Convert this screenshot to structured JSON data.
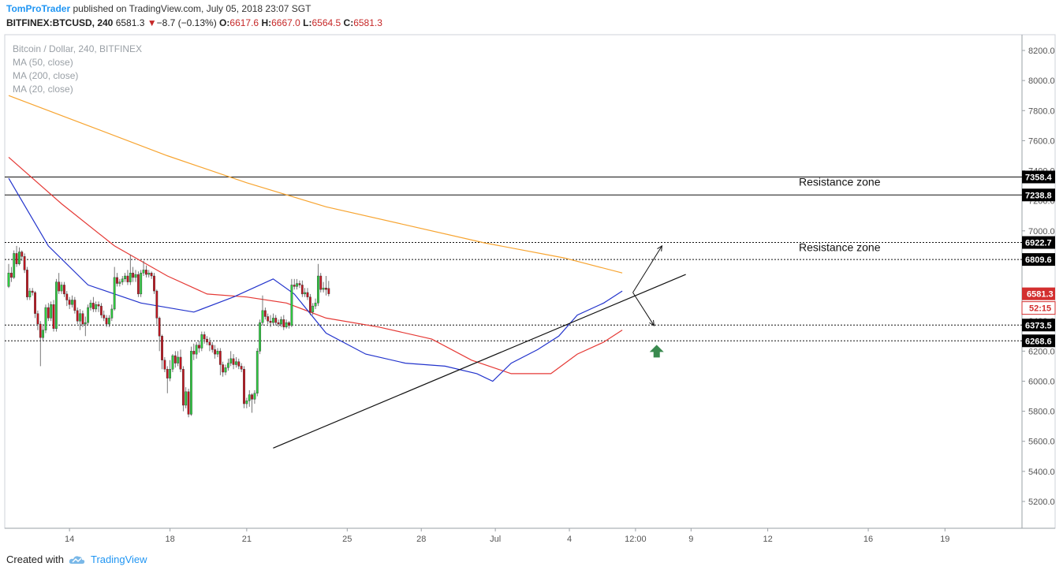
{
  "header": {
    "author": "TomProTrader",
    "published": "published on TradingView.com, July 05, 2018 23:07 SGT",
    "symbol": "BITFINEX:BTCUSD, 240",
    "last": "6581.3",
    "change_arrow": "▼",
    "change": "−8.7 (−0.13%)",
    "o_label": "O:",
    "o": "6617.6",
    "h_label": "H:",
    "h": "6667.0",
    "l_label": "L:",
    "l": "6564.5",
    "c_label": "C:",
    "c": "6581.3"
  },
  "legend": {
    "title": "Bitcoin / Dollar, 240, BITFINEX",
    "ma50": "MA (50, close)",
    "ma200": "MA (200, close)",
    "ma20": "MA (20, close)"
  },
  "footer": {
    "created_with": "Created with",
    "brand": "TradingView"
  },
  "colors": {
    "up": "#2ecc40",
    "down": "#c0151f",
    "ma20": "#2233cc",
    "ma50": "#e53935",
    "ma200": "#f7a430",
    "arrow_up_marker": "#3a8a4f",
    "price_tag": "#d32f2f",
    "level_tag": "#000000"
  },
  "chart_data": {
    "type": "candlestick",
    "title": "Bitcoin / Dollar, 240, BITFINEX",
    "ylim": [
      5000,
      8300
    ],
    "y_ticks": [
      "8200.0",
      "8000.0",
      "7800.0",
      "7600.0",
      "7400.0",
      "7200.0",
      "7000.0",
      "6800.0",
      "6600.0",
      "6400.0",
      "6200.0",
      "6000.0",
      "5800.0",
      "5600.0",
      "5400.0",
      "5200.0"
    ],
    "x_ticks": [
      "14",
      "18",
      "21",
      "25",
      "28",
      "Jul",
      "4",
      "12:00",
      "9",
      "12",
      "16",
      "19"
    ],
    "x_tick_index": [
      23,
      61,
      90,
      128,
      156,
      184,
      212,
      237,
      258,
      287,
      325,
      354
    ],
    "levels": [
      {
        "label": "7358.4",
        "value": 7358.4,
        "style": "solid",
        "note": "Resistance zone"
      },
      {
        "label": "7238.8",
        "value": 7238.8,
        "style": "solid",
        "note": ""
      },
      {
        "label": "6922.7",
        "value": 6922.7,
        "style": "dotted",
        "note": "Resistance zone"
      },
      {
        "label": "6809.6",
        "value": 6809.6,
        "style": "dotted",
        "note": ""
      },
      {
        "label": "6373.5",
        "value": 6373.5,
        "style": "dotted",
        "note": ""
      },
      {
        "label": "6268.6",
        "value": 6268.6,
        "style": "dotted",
        "note": ""
      }
    ],
    "last_price": {
      "label": "6581.3",
      "value": 6581.3,
      "countdown": "52:15"
    },
    "trendline": {
      "from": {
        "i": 100,
        "y": 5555
      },
      "to": {
        "i": 256,
        "y": 6710
      }
    },
    "arrows": [
      {
        "from": {
          "i": 236,
          "y": 6590
        },
        "to": {
          "i": 247,
          "y": 6900
        }
      },
      {
        "from": {
          "i": 236,
          "y": 6590
        },
        "to": {
          "i": 244,
          "y": 6370
        }
      }
    ],
    "up_marker": {
      "i": 245,
      "y": 6200
    },
    "ma200": [
      [
        0,
        7900
      ],
      [
        30,
        7700
      ],
      [
        60,
        7500
      ],
      [
        90,
        7320
      ],
      [
        120,
        7160
      ],
      [
        150,
        7040
      ],
      [
        180,
        6920
      ],
      [
        210,
        6820
      ],
      [
        232,
        6720
      ]
    ],
    "ma50": [
      [
        0,
        7490
      ],
      [
        20,
        7180
      ],
      [
        40,
        6900
      ],
      [
        60,
        6700
      ],
      [
        75,
        6580
      ],
      [
        90,
        6560
      ],
      [
        105,
        6520
      ],
      [
        120,
        6420
      ],
      [
        140,
        6360
      ],
      [
        160,
        6280
      ],
      [
        175,
        6140
      ],
      [
        190,
        6050
      ],
      [
        205,
        6050
      ],
      [
        215,
        6180
      ],
      [
        225,
        6260
      ],
      [
        232,
        6340
      ]
    ],
    "ma20": [
      [
        0,
        7350
      ],
      [
        15,
        6900
      ],
      [
        30,
        6640
      ],
      [
        50,
        6520
      ],
      [
        70,
        6460
      ],
      [
        85,
        6560
      ],
      [
        100,
        6680
      ],
      [
        108,
        6580
      ],
      [
        120,
        6320
      ],
      [
        135,
        6180
      ],
      [
        150,
        6120
      ],
      [
        165,
        6100
      ],
      [
        177,
        6050
      ],
      [
        183,
        6000
      ],
      [
        190,
        6120
      ],
      [
        200,
        6210
      ],
      [
        208,
        6300
      ],
      [
        215,
        6440
      ],
      [
        225,
        6520
      ],
      [
        232,
        6600
      ]
    ],
    "candles": [
      [
        6630,
        6720,
        6620,
        6780
      ],
      [
        6720,
        6690,
        6660,
        6760
      ],
      [
        6690,
        6850,
        6680,
        6870
      ],
      [
        6850,
        6780,
        6760,
        6900
      ],
      [
        6780,
        6860,
        6770,
        6890
      ],
      [
        6860,
        6830,
        6800,
        6870
      ],
      [
        6830,
        6740,
        6720,
        6850
      ],
      [
        6740,
        6560,
        6540,
        6760
      ],
      [
        6560,
        6600,
        6540,
        6620
      ],
      [
        6600,
        6590,
        6570,
        6620
      ],
      [
        6590,
        6450,
        6420,
        6600
      ],
      [
        6450,
        6380,
        6340,
        6470
      ],
      [
        6380,
        6290,
        6100,
        6400
      ],
      [
        6290,
        6340,
        6270,
        6380
      ],
      [
        6340,
        6490,
        6320,
        6510
      ],
      [
        6490,
        6420,
        6400,
        6520
      ],
      [
        6420,
        6510,
        6400,
        6530
      ],
      [
        6510,
        6350,
        6330,
        6540
      ],
      [
        6350,
        6660,
        6330,
        6680
      ],
      [
        6660,
        6600,
        6580,
        6720
      ],
      [
        6600,
        6640,
        6580,
        6660
      ],
      [
        6640,
        6580,
        6560,
        6660
      ],
      [
        6580,
        6540,
        6500,
        6600
      ],
      [
        6540,
        6510,
        6480,
        6560
      ],
      [
        6510,
        6540,
        6490,
        6570
      ],
      [
        6540,
        6470,
        6450,
        6560
      ],
      [
        6470,
        6400,
        6380,
        6490
      ],
      [
        6400,
        6450,
        6340,
        6480
      ],
      [
        6450,
        6380,
        6360,
        6470
      ],
      [
        6380,
        6390,
        6300,
        6430
      ],
      [
        6390,
        6490,
        6370,
        6510
      ],
      [
        6490,
        6520,
        6470,
        6540
      ],
      [
        6520,
        6480,
        6460,
        6560
      ],
      [
        6480,
        6510,
        6460,
        6530
      ],
      [
        6510,
        6500,
        6460,
        6530
      ],
      [
        6500,
        6440,
        6420,
        6520
      ],
      [
        6440,
        6420,
        6400,
        6470
      ],
      [
        6420,
        6380,
        6360,
        6440
      ],
      [
        6380,
        6420,
        6360,
        6440
      ],
      [
        6420,
        6480,
        6400,
        6510
      ],
      [
        6480,
        6690,
        6470,
        6760
      ],
      [
        6690,
        6650,
        6630,
        6720
      ],
      [
        6650,
        6660,
        6630,
        6680
      ],
      [
        6660,
        6680,
        6640,
        6700
      ],
      [
        6680,
        6700,
        6660,
        6720
      ],
      [
        6700,
        6660,
        6640,
        6740
      ],
      [
        6660,
        6720,
        6640,
        6840
      ],
      [
        6720,
        6690,
        6660,
        6760
      ],
      [
        6690,
        6710,
        6660,
        6740
      ],
      [
        6710,
        6580,
        6560,
        6730
      ],
      [
        6580,
        6720,
        6560,
        6740
      ],
      [
        6720,
        6740,
        6700,
        6800
      ],
      [
        6740,
        6710,
        6690,
        6770
      ],
      [
        6710,
        6720,
        6690,
        6740
      ],
      [
        6720,
        6700,
        6680,
        6730
      ],
      [
        6700,
        6600,
        6580,
        6720
      ],
      [
        6600,
        6420,
        6380,
        6610
      ],
      [
        6420,
        6300,
        6200,
        6430
      ],
      [
        6300,
        6140,
        6080,
        6310
      ],
      [
        6140,
        6080,
        6060,
        6160
      ],
      [
        6080,
        6020,
        5920,
        6100
      ],
      [
        6020,
        6080,
        6000,
        6140
      ],
      [
        6080,
        6170,
        6060,
        6180
      ],
      [
        6170,
        6120,
        6090,
        6200
      ],
      [
        6120,
        6160,
        6100,
        6200
      ],
      [
        6160,
        6080,
        6060,
        6210
      ],
      [
        6080,
        5840,
        5800,
        6100
      ],
      [
        5840,
        5930,
        5820,
        5960
      ],
      [
        5930,
        5780,
        5760,
        5950
      ],
      [
        5780,
        6200,
        5770,
        6230
      ],
      [
        6200,
        6180,
        6140,
        6250
      ],
      [
        6180,
        6240,
        6150,
        6260
      ],
      [
        6240,
        6220,
        6190,
        6270
      ],
      [
        6220,
        6310,
        6200,
        6330
      ],
      [
        6310,
        6280,
        6250,
        6330
      ],
      [
        6280,
        6260,
        6240,
        6300
      ],
      [
        6260,
        6240,
        6200,
        6290
      ],
      [
        6240,
        6210,
        6190,
        6260
      ],
      [
        6210,
        6180,
        6150,
        6240
      ],
      [
        6180,
        6200,
        6160,
        6220
      ],
      [
        6200,
        6110,
        6040,
        6220
      ],
      [
        6110,
        6060,
        6030,
        6130
      ],
      [
        6060,
        6090,
        6040,
        6110
      ],
      [
        6090,
        6120,
        6070,
        6150
      ],
      [
        6120,
        6150,
        6100,
        6200
      ],
      [
        6150,
        6110,
        6080,
        6180
      ],
      [
        6110,
        6130,
        6090,
        6160
      ],
      [
        6130,
        6100,
        6080,
        6150
      ],
      [
        6100,
        6080,
        6060,
        6120
      ],
      [
        6080,
        5850,
        5820,
        6100
      ],
      [
        5850,
        5870,
        5820,
        5890
      ],
      [
        5870,
        5910,
        5830,
        5940
      ],
      [
        5910,
        5880,
        5790,
        5920
      ],
      [
        5880,
        5920,
        5850,
        5940
      ],
      [
        5920,
        6200,
        5900,
        6220
      ],
      [
        6200,
        6390,
        6180,
        6410
      ],
      [
        6390,
        6470,
        6370,
        6570
      ],
      [
        6470,
        6430,
        6410,
        6490
      ],
      [
        6430,
        6400,
        6380,
        6450
      ],
      [
        6400,
        6390,
        6360,
        6440
      ],
      [
        6390,
        6420,
        6370,
        6450
      ],
      [
        6420,
        6390,
        6370,
        6440
      ],
      [
        6390,
        6380,
        6360,
        6410
      ],
      [
        6380,
        6410,
        6360,
        6430
      ],
      [
        6410,
        6360,
        6340,
        6440
      ],
      [
        6360,
        6390,
        6350,
        6410
      ],
      [
        6390,
        6370,
        6350,
        6400
      ],
      [
        6370,
        6640,
        6360,
        6680
      ],
      [
        6640,
        6630,
        6610,
        6680
      ],
      [
        6630,
        6650,
        6610,
        6680
      ],
      [
        6650,
        6640,
        6620,
        6670
      ],
      [
        6640,
        6580,
        6560,
        6670
      ],
      [
        6580,
        6590,
        6560,
        6620
      ],
      [
        6590,
        6560,
        6540,
        6620
      ],
      [
        6560,
        6460,
        6440,
        6580
      ],
      [
        6460,
        6500,
        6440,
        6520
      ],
      [
        6500,
        6520,
        6480,
        6550
      ],
      [
        6520,
        6700,
        6500,
        6780
      ],
      [
        6700,
        6610,
        6590,
        6720
      ],
      [
        6610,
        6620,
        6590,
        6660
      ],
      [
        6620,
        6610,
        6570,
        6700
      ],
      [
        6617.6,
        6581.3,
        6564.5,
        6667.0
      ]
    ]
  }
}
